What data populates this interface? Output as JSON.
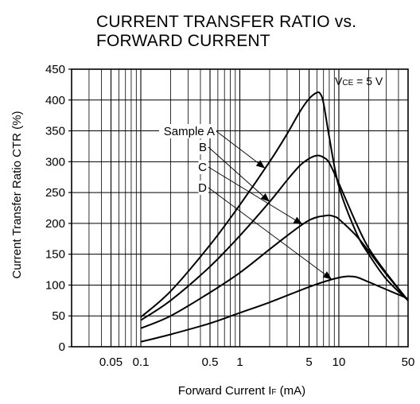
{
  "chart_data": {
    "type": "line",
    "title_lines": [
      "CURRENT TRANSFER RATIO vs.",
      "FORWARD CURRENT"
    ],
    "xlabel": {
      "main": "Forward Current  I",
      "sub": "F",
      "unit": " (mA)"
    },
    "ylabel": "Current Transfer Ratio  CTR (%)",
    "x_scale": "log",
    "xlim": [
      0.02,
      50
    ],
    "ylim": [
      0,
      450
    ],
    "y_ticks": [
      0,
      50,
      100,
      150,
      200,
      250,
      300,
      350,
      400,
      450
    ],
    "x_tick_values": [
      0.05,
      0.1,
      0.5,
      1,
      5,
      10,
      50
    ],
    "x_tick_labels": [
      "0.05",
      "0.1",
      "0.5",
      "1",
      "5",
      "10",
      "50"
    ],
    "grid": true,
    "condition": {
      "main": "V",
      "sub": "CE",
      "rest": " = 5 V"
    },
    "series": [
      {
        "name": "Sample A",
        "x": [
          0.1,
          0.2,
          0.5,
          1,
          2,
          3,
          4,
          5,
          6,
          6.5,
          7,
          8,
          10,
          15,
          20,
          30,
          50
        ],
        "y": [
          48,
          90,
          165,
          230,
          300,
          345,
          380,
          402,
          412,
          410,
          395,
          340,
          260,
          185,
          150,
          110,
          75
        ]
      },
      {
        "name": "B",
        "x": [
          0.1,
          0.2,
          0.5,
          1,
          2,
          3,
          4,
          5,
          6,
          7,
          8,
          10,
          15,
          20,
          30,
          50
        ],
        "y": [
          43,
          75,
          130,
          180,
          235,
          270,
          293,
          305,
          310,
          307,
          298,
          265,
          200,
          160,
          120,
          75
        ]
      },
      {
        "name": "C",
        "x": [
          0.1,
          0.2,
          0.5,
          1,
          2,
          3,
          4,
          5,
          6,
          7,
          8,
          9,
          10,
          15,
          20,
          30,
          50
        ],
        "y": [
          30,
          50,
          88,
          120,
          158,
          180,
          195,
          205,
          210,
          212,
          213,
          211,
          207,
          180,
          155,
          118,
          75
        ]
      },
      {
        "name": "D",
        "x": [
          0.1,
          0.2,
          0.5,
          1,
          2,
          5,
          8,
          10,
          12,
          15,
          20,
          30,
          50
        ],
        "y": [
          8,
          20,
          38,
          55,
          72,
          97,
          108,
          112,
          114,
          113,
          105,
          93,
          78
        ]
      }
    ],
    "annotations": [
      {
        "label": "Sample A",
        "target_series": 0,
        "target_x": 1.8
      },
      {
        "label": "B",
        "target_series": 1,
        "target_x": 2.0
      },
      {
        "label": "C",
        "target_series": 2,
        "target_x": 4.3
      },
      {
        "label": "D",
        "target_series": 3,
        "target_x": 8.5
      }
    ]
  }
}
